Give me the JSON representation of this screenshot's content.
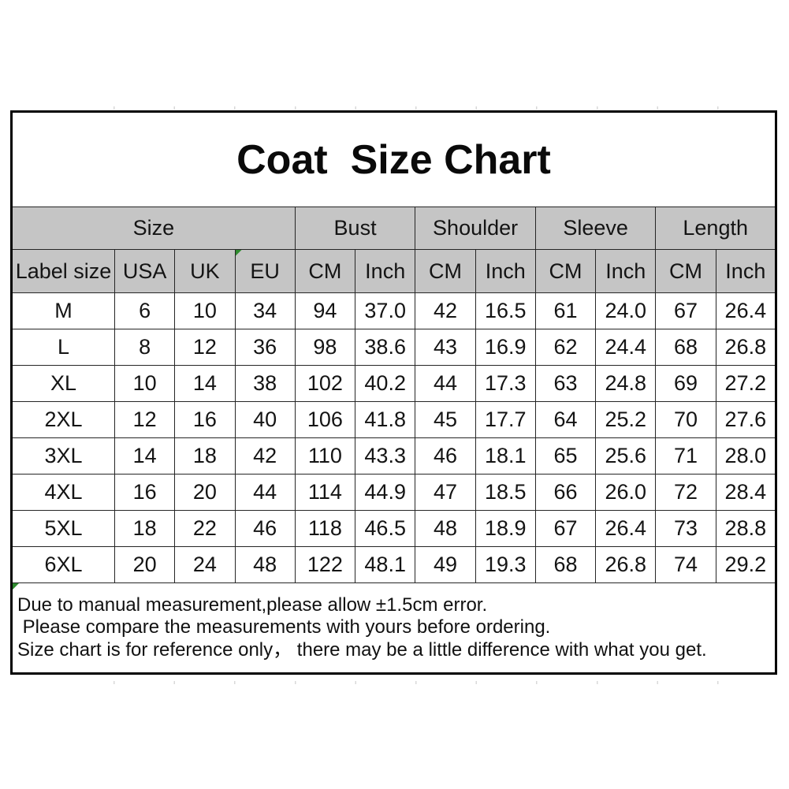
{
  "title": "Coat  Size Chart",
  "table": {
    "groups": [
      {
        "label": "Size",
        "span": 4
      },
      {
        "label": "Bust",
        "span": 2
      },
      {
        "label": "Shoulder",
        "span": 2
      },
      {
        "label": "Sleeve",
        "span": 2
      },
      {
        "label": "Length",
        "span": 2
      }
    ],
    "columns": [
      "Label size",
      "USA",
      "UK",
      "EU",
      "CM",
      "Inch",
      "CM",
      "Inch",
      "CM",
      "Inch",
      "CM",
      "Inch"
    ],
    "rows": [
      [
        "M",
        "6",
        "10",
        "34",
        "94",
        "37.0",
        "42",
        "16.5",
        "61",
        "24.0",
        "67",
        "26.4"
      ],
      [
        "L",
        "8",
        "12",
        "36",
        "98",
        "38.6",
        "43",
        "16.9",
        "62",
        "24.4",
        "68",
        "26.8"
      ],
      [
        "XL",
        "10",
        "14",
        "38",
        "102",
        "40.2",
        "44",
        "17.3",
        "63",
        "24.8",
        "69",
        "27.2"
      ],
      [
        "2XL",
        "12",
        "16",
        "40",
        "106",
        "41.8",
        "45",
        "17.7",
        "64",
        "25.2",
        "70",
        "27.6"
      ],
      [
        "3XL",
        "14",
        "18",
        "42",
        "110",
        "43.3",
        "46",
        "18.1",
        "65",
        "25.6",
        "71",
        "28.0"
      ],
      [
        "4XL",
        "16",
        "20",
        "44",
        "114",
        "44.9",
        "47",
        "18.5",
        "66",
        "26.0",
        "72",
        "28.4"
      ],
      [
        "5XL",
        "18",
        "22",
        "46",
        "118",
        "46.5",
        "48",
        "18.9",
        "67",
        "26.4",
        "73",
        "28.8"
      ],
      [
        "6XL",
        "20",
        "24",
        "48",
        "122",
        "48.1",
        "49",
        "19.3",
        "68",
        "26.8",
        "74",
        "29.2"
      ]
    ]
  },
  "notes": [
    "Due to manual measurement,please allow ±1.5cm error.",
    " Please compare the measurements with yours before ordering.",
    "Size chart is for reference only， there may be a little difference with what you get."
  ],
  "colors": {
    "header_bg": "#c5c5c5",
    "border": "#262626",
    "marker_green": "#2e8b2e"
  }
}
